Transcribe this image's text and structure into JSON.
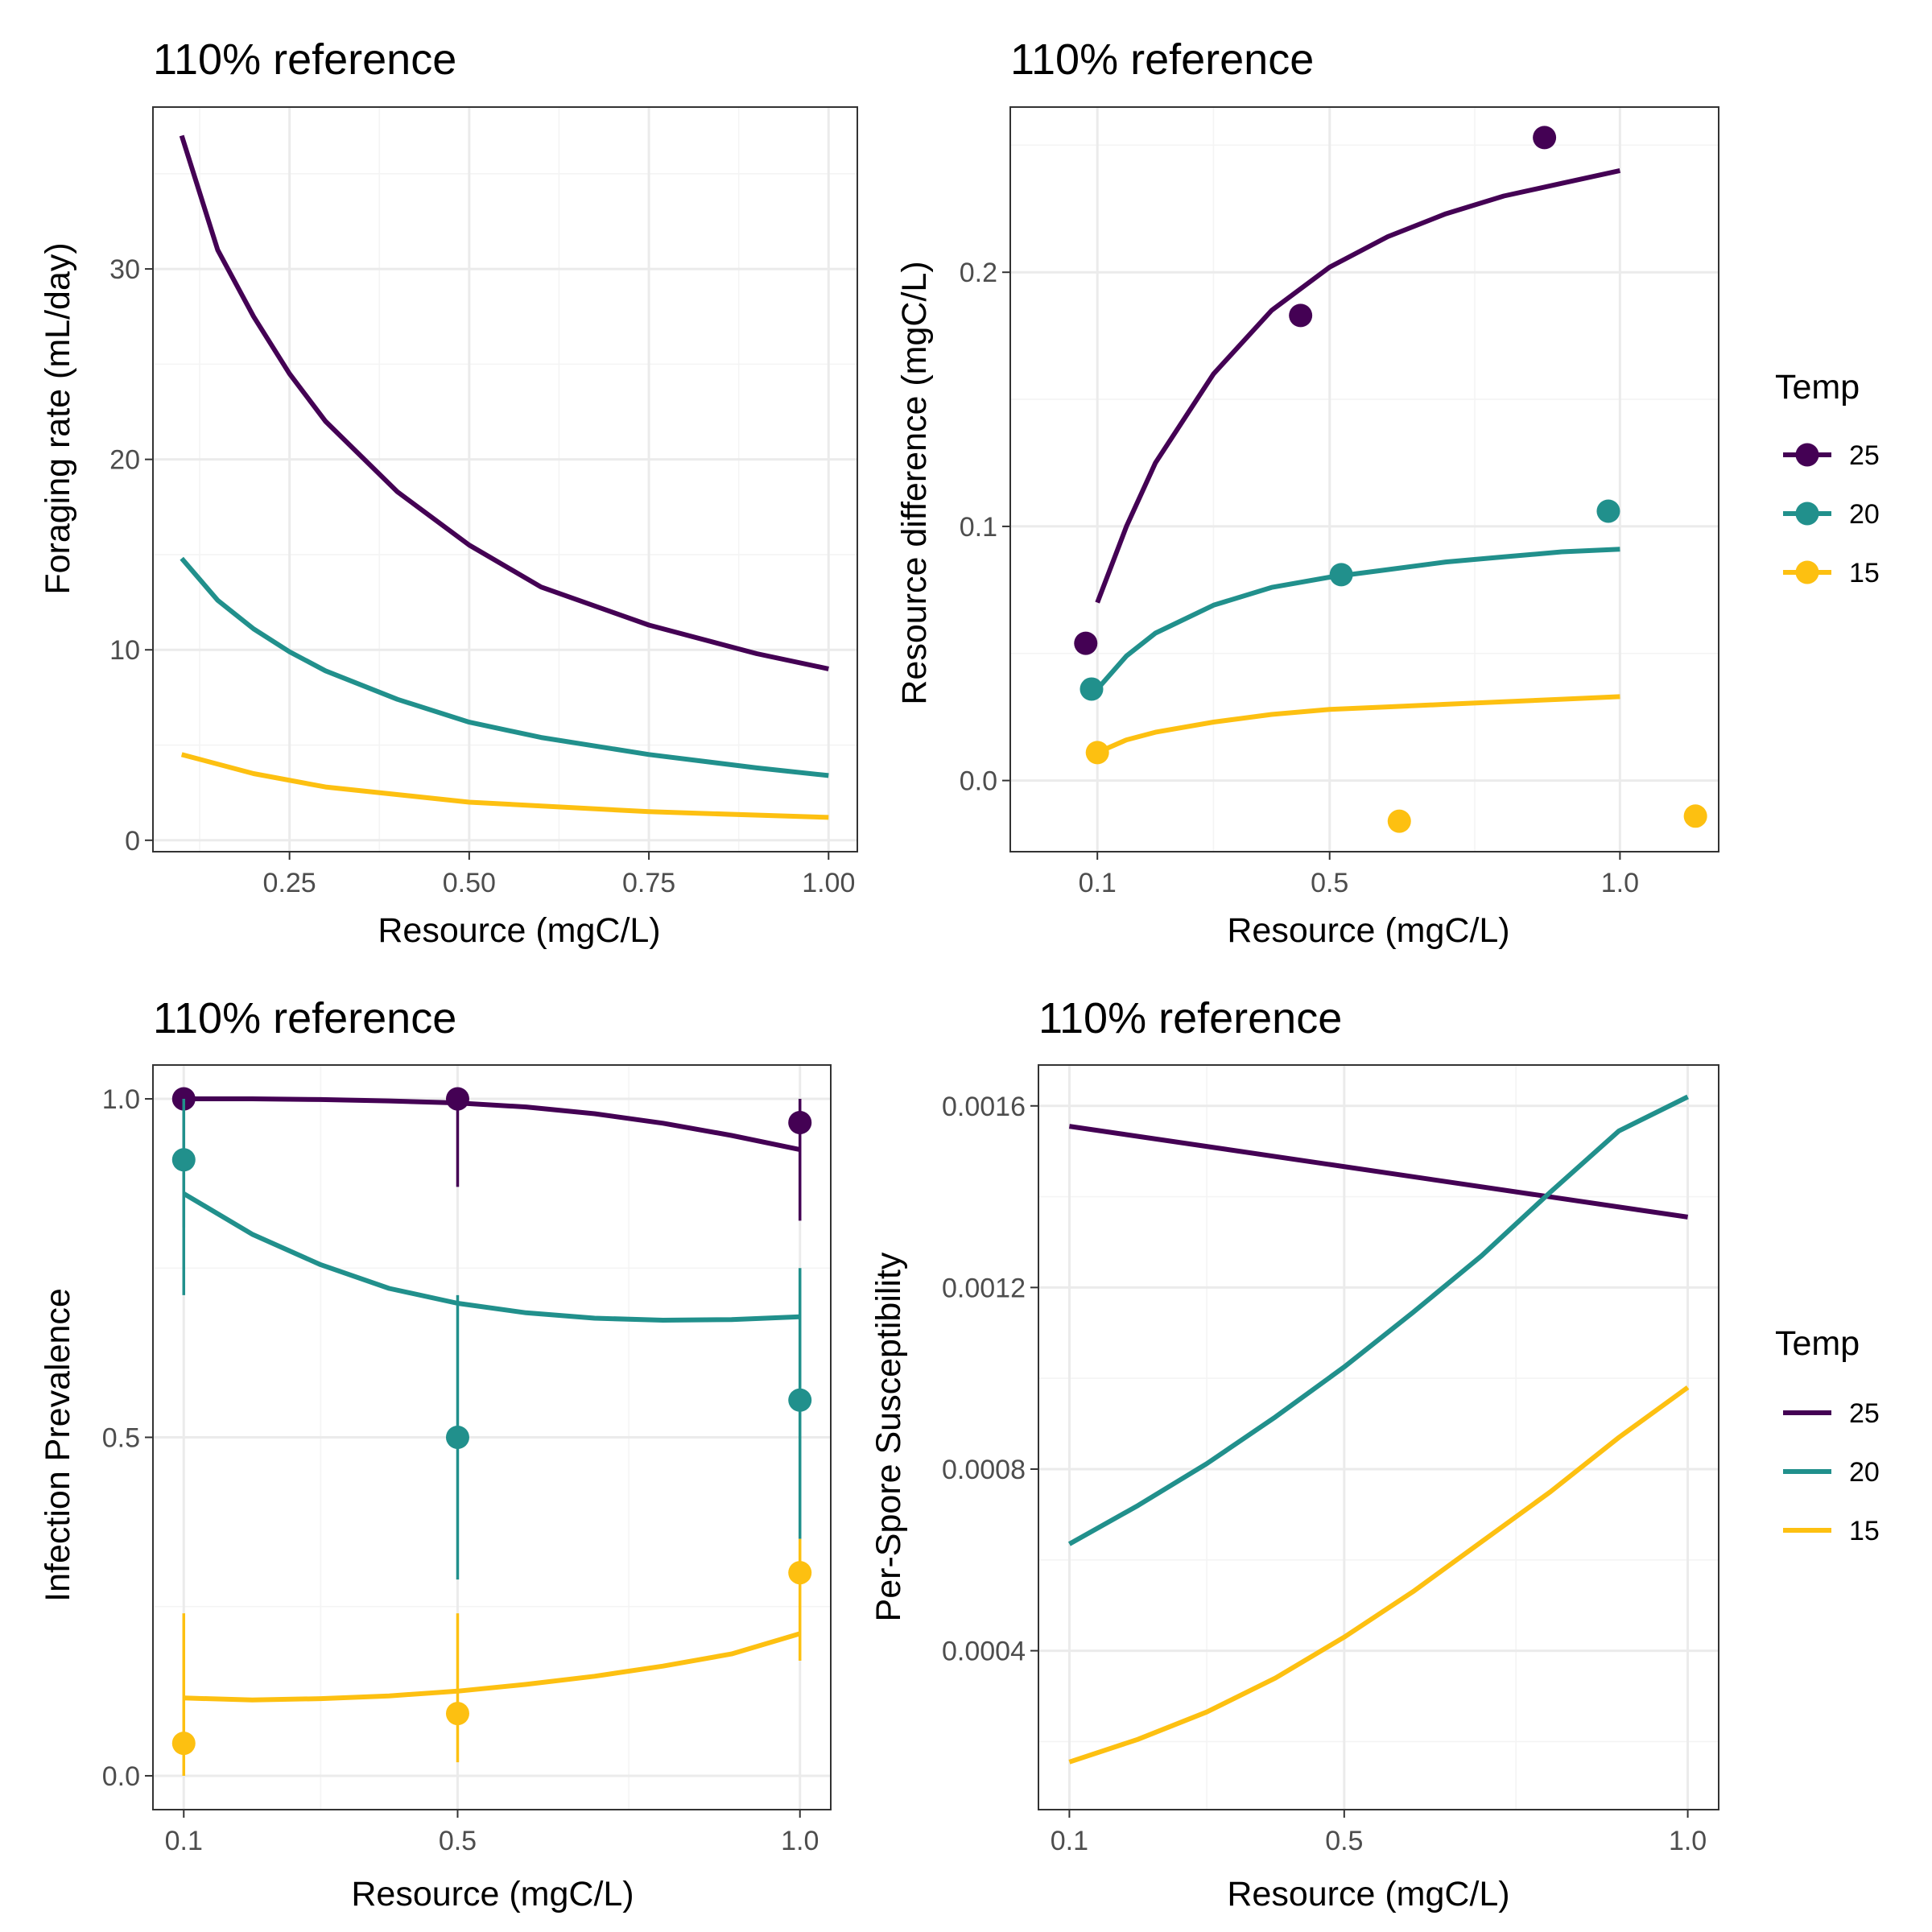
{
  "colors": {
    "25": "#440154",
    "20": "#21908C",
    "15": "#FDC011",
    "grid_major": "#ebebeb",
    "grid_minor": "#f4f4f4",
    "frame": "#333333",
    "tick_text": "#4d4d4d"
  },
  "legends": [
    {
      "title": "Temp",
      "style": "line-point",
      "items": [
        "25",
        "20",
        "15"
      ]
    },
    {
      "title": "Temp",
      "style": "line",
      "items": [
        "25",
        "20",
        "15"
      ]
    }
  ],
  "chart_data": [
    {
      "type": "line",
      "title": "110% reference",
      "xlabel": "Resource (mgC/L)",
      "ylabel": "Foraging rate (mL/day)",
      "xlim": [
        0.06,
        1.04
      ],
      "ylim": [
        -0.6,
        38.5
      ],
      "x_ticks": [
        0.25,
        0.5,
        0.75,
        1.0
      ],
      "x_tick_labels": [
        "0.25",
        "0.50",
        "0.75",
        "1.00"
      ],
      "y_ticks": [
        0,
        10,
        20,
        30
      ],
      "y_tick_labels": [
        "0",
        "10",
        "20",
        "30"
      ],
      "series": [
        {
          "name": "25",
          "x": [
            0.1,
            0.15,
            0.2,
            0.25,
            0.3,
            0.4,
            0.5,
            0.6,
            0.75,
            0.9,
            1.0
          ],
          "y": [
            37.0,
            31.0,
            27.5,
            24.5,
            22.0,
            18.3,
            15.5,
            13.3,
            11.3,
            9.8,
            9.0
          ]
        },
        {
          "name": "20",
          "x": [
            0.1,
            0.15,
            0.2,
            0.25,
            0.3,
            0.4,
            0.5,
            0.6,
            0.75,
            0.9,
            1.0
          ],
          "y": [
            14.8,
            12.6,
            11.1,
            9.9,
            8.9,
            7.4,
            6.2,
            5.4,
            4.5,
            3.8,
            3.4
          ]
        },
        {
          "name": "15",
          "x": [
            0.1,
            0.2,
            0.3,
            0.5,
            0.75,
            1.0
          ],
          "y": [
            4.5,
            3.5,
            2.8,
            2.0,
            1.5,
            1.2
          ]
        }
      ]
    },
    {
      "type": "scatter",
      "title": "110% reference",
      "xlabel": "Resource (mgC/L)",
      "ylabel": "Resource difference (mgC/L)",
      "xlim": [
        -0.05,
        1.17
      ],
      "ylim": [
        -0.028,
        0.265
      ],
      "x_ticks": [
        0.1,
        0.5,
        1.0
      ],
      "x_tick_labels": [
        "0.1",
        "0.5",
        "1.0"
      ],
      "y_ticks": [
        0.0,
        0.1,
        0.2
      ],
      "y_tick_labels": [
        "0.0",
        "0.1",
        "0.2"
      ],
      "series": [
        {
          "name": "25",
          "fit_x": [
            0.1,
            0.15,
            0.2,
            0.3,
            0.4,
            0.5,
            0.6,
            0.7,
            0.8,
            0.9,
            1.0
          ],
          "fit_y": [
            0.07,
            0.1,
            0.125,
            0.16,
            0.185,
            0.202,
            0.214,
            0.223,
            0.23,
            0.235,
            0.24
          ],
          "points_x": [
            0.08,
            0.45,
            0.87
          ],
          "points_y": [
            0.054,
            0.183,
            0.253
          ]
        },
        {
          "name": "20",
          "fit_x": [
            0.1,
            0.15,
            0.2,
            0.3,
            0.4,
            0.5,
            0.6,
            0.7,
            0.8,
            0.9,
            1.0
          ],
          "fit_y": [
            0.036,
            0.049,
            0.058,
            0.069,
            0.076,
            0.08,
            0.083,
            0.086,
            0.088,
            0.09,
            0.091
          ],
          "points_x": [
            0.09,
            0.52,
            0.98
          ],
          "points_y": [
            0.036,
            0.081,
            0.106
          ]
        },
        {
          "name": "15",
          "fit_x": [
            0.1,
            0.15,
            0.2,
            0.3,
            0.4,
            0.5,
            0.6,
            0.7,
            0.8,
            0.9,
            1.0
          ],
          "fit_y": [
            0.011,
            0.016,
            0.019,
            0.023,
            0.026,
            0.028,
            0.029,
            0.03,
            0.031,
            0.032,
            0.033
          ],
          "points_x": [
            0.1,
            0.62,
            1.13
          ],
          "points_y": [
            0.011,
            -0.016,
            -0.014
          ]
        }
      ]
    },
    {
      "type": "line",
      "title": "110% reference",
      "xlabel": "Resource (mgC/L)",
      "ylabel": "Infection Prevalence",
      "xlim": [
        0.055,
        1.045
      ],
      "ylim": [
        -0.05,
        1.05
      ],
      "x_ticks": [
        0.1,
        0.5,
        1.0
      ],
      "x_tick_labels": [
        "0.1",
        "0.5",
        "1.0"
      ],
      "y_ticks": [
        0.0,
        0.5,
        1.0
      ],
      "y_tick_labels": [
        "0.0",
        "0.5",
        "1.0"
      ],
      "series": [
        {
          "name": "25",
          "fit_x": [
            0.1,
            0.2,
            0.3,
            0.4,
            0.5,
            0.6,
            0.7,
            0.8,
            0.9,
            1.0
          ],
          "fit_y": [
            1.0,
            1.0,
            0.999,
            0.997,
            0.994,
            0.988,
            0.978,
            0.964,
            0.946,
            0.925
          ],
          "points_x": [
            0.1,
            0.5,
            1.0
          ],
          "points_y": [
            1.0,
            1.0,
            0.965
          ],
          "err_low": [
            0.81,
            0.87,
            0.82
          ],
          "err_high": [
            1.0,
            1.0,
            1.0
          ]
        },
        {
          "name": "20",
          "fit_x": [
            0.1,
            0.2,
            0.3,
            0.4,
            0.5,
            0.6,
            0.7,
            0.8,
            0.9,
            1.0
          ],
          "fit_y": [
            0.86,
            0.8,
            0.755,
            0.72,
            0.698,
            0.684,
            0.676,
            0.673,
            0.674,
            0.678
          ],
          "points_x": [
            0.1,
            0.5,
            1.0
          ],
          "points_y": [
            0.91,
            0.5,
            0.555
          ],
          "err_low": [
            0.71,
            0.29,
            0.35
          ],
          "err_high": [
            1.0,
            0.71,
            0.75
          ]
        },
        {
          "name": "15",
          "fit_x": [
            0.1,
            0.2,
            0.3,
            0.4,
            0.5,
            0.6,
            0.7,
            0.8,
            0.9,
            1.0
          ],
          "fit_y": [
            0.115,
            0.112,
            0.114,
            0.118,
            0.125,
            0.135,
            0.147,
            0.162,
            0.18,
            0.21
          ],
          "points_x": [
            0.1,
            0.5,
            1.0
          ],
          "points_y": [
            0.048,
            0.092,
            0.3
          ],
          "err_low": [
            0.0,
            0.02,
            0.17
          ],
          "err_high": [
            0.24,
            0.24,
            0.35
          ]
        }
      ]
    },
    {
      "type": "line",
      "title": "110% reference",
      "xlabel": "Resource (mgC/L)",
      "ylabel": "Per-Spore Susceptibility",
      "xlim": [
        0.055,
        1.045
      ],
      "ylim": [
        5e-05,
        0.00169
      ],
      "x_ticks": [
        0.1,
        0.5,
        1.0
      ],
      "x_tick_labels": [
        "0.1",
        "0.5",
        "1.0"
      ],
      "y_ticks": [
        0.0004,
        0.0008,
        0.0012,
        0.0016
      ],
      "y_tick_labels": [
        "0.0004",
        "0.0008",
        "0.0012",
        "0.0016"
      ],
      "series": [
        {
          "name": "25",
          "x": [
            0.1,
            1.0
          ],
          "y": [
            0.001555,
            0.001355
          ]
        },
        {
          "name": "20",
          "x": [
            0.1,
            0.2,
            0.3,
            0.4,
            0.5,
            0.6,
            0.7,
            0.8,
            0.9,
            1.0
          ],
          "y": [
            0.000635,
            0.00072,
            0.000812,
            0.000915,
            0.001025,
            0.001145,
            0.00127,
            0.00141,
            0.001545,
            0.00162
          ]
        },
        {
          "name": "15",
          "x": [
            0.1,
            0.2,
            0.3,
            0.4,
            0.5,
            0.6,
            0.7,
            0.8,
            0.9,
            1.0
          ],
          "y": [
            0.000155,
            0.000205,
            0.000265,
            0.00034,
            0.00043,
            0.00053,
            0.00064,
            0.00075,
            0.00087,
            0.00098
          ]
        }
      ]
    }
  ]
}
